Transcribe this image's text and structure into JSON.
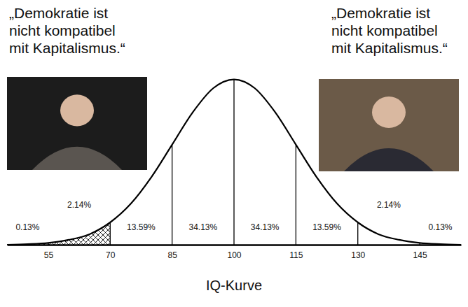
{
  "chart_data": {
    "type": "line",
    "title": "IQ-Kurve",
    "annotations": [
      [
        "„Demokratie ist",
        "nicht kompatibel",
        "mit Kapitalismus.“"
      ],
      [
        "„Demokratie ist",
        "nicht kompatibel",
        "mit Kapitalismus.“"
      ]
    ],
    "x": [
      45,
      50,
      55,
      60,
      65,
      70,
      75,
      80,
      85,
      90,
      95,
      100,
      105,
      110,
      115,
      120,
      125,
      130,
      135,
      140,
      145,
      150,
      155
    ],
    "values": [
      0,
      0.01,
      0.03,
      0.08,
      0.17,
      0.36,
      0.66,
      1.09,
      1.61,
      2.13,
      2.52,
      2.66,
      2.52,
      2.13,
      1.61,
      1.09,
      0.66,
      0.36,
      0.17,
      0.08,
      0.03,
      0.01,
      0
    ],
    "color": "#000000",
    "xlim": [
      45,
      155
    ],
    "xticks": [
      55,
      70,
      85,
      100,
      115,
      130,
      145
    ],
    "ylim": [
      0,
      2.7
    ],
    "tick_labels": "x",
    "hatched_range": [
      45,
      70
    ],
    "regions": {
      "edges": [
        45,
        55,
        70,
        85,
        100,
        115,
        130,
        145,
        155
      ],
      "values": [
        0.13,
        2.14,
        13.59,
        34.13,
        34.13,
        13.59,
        2.14,
        0.13
      ],
      "value_labels": [
        "0.13%",
        "2.14%",
        "13.59%",
        "34.13%",
        "34.13%",
        "13.59%",
        "2.14%",
        "0.13%"
      ]
    }
  }
}
